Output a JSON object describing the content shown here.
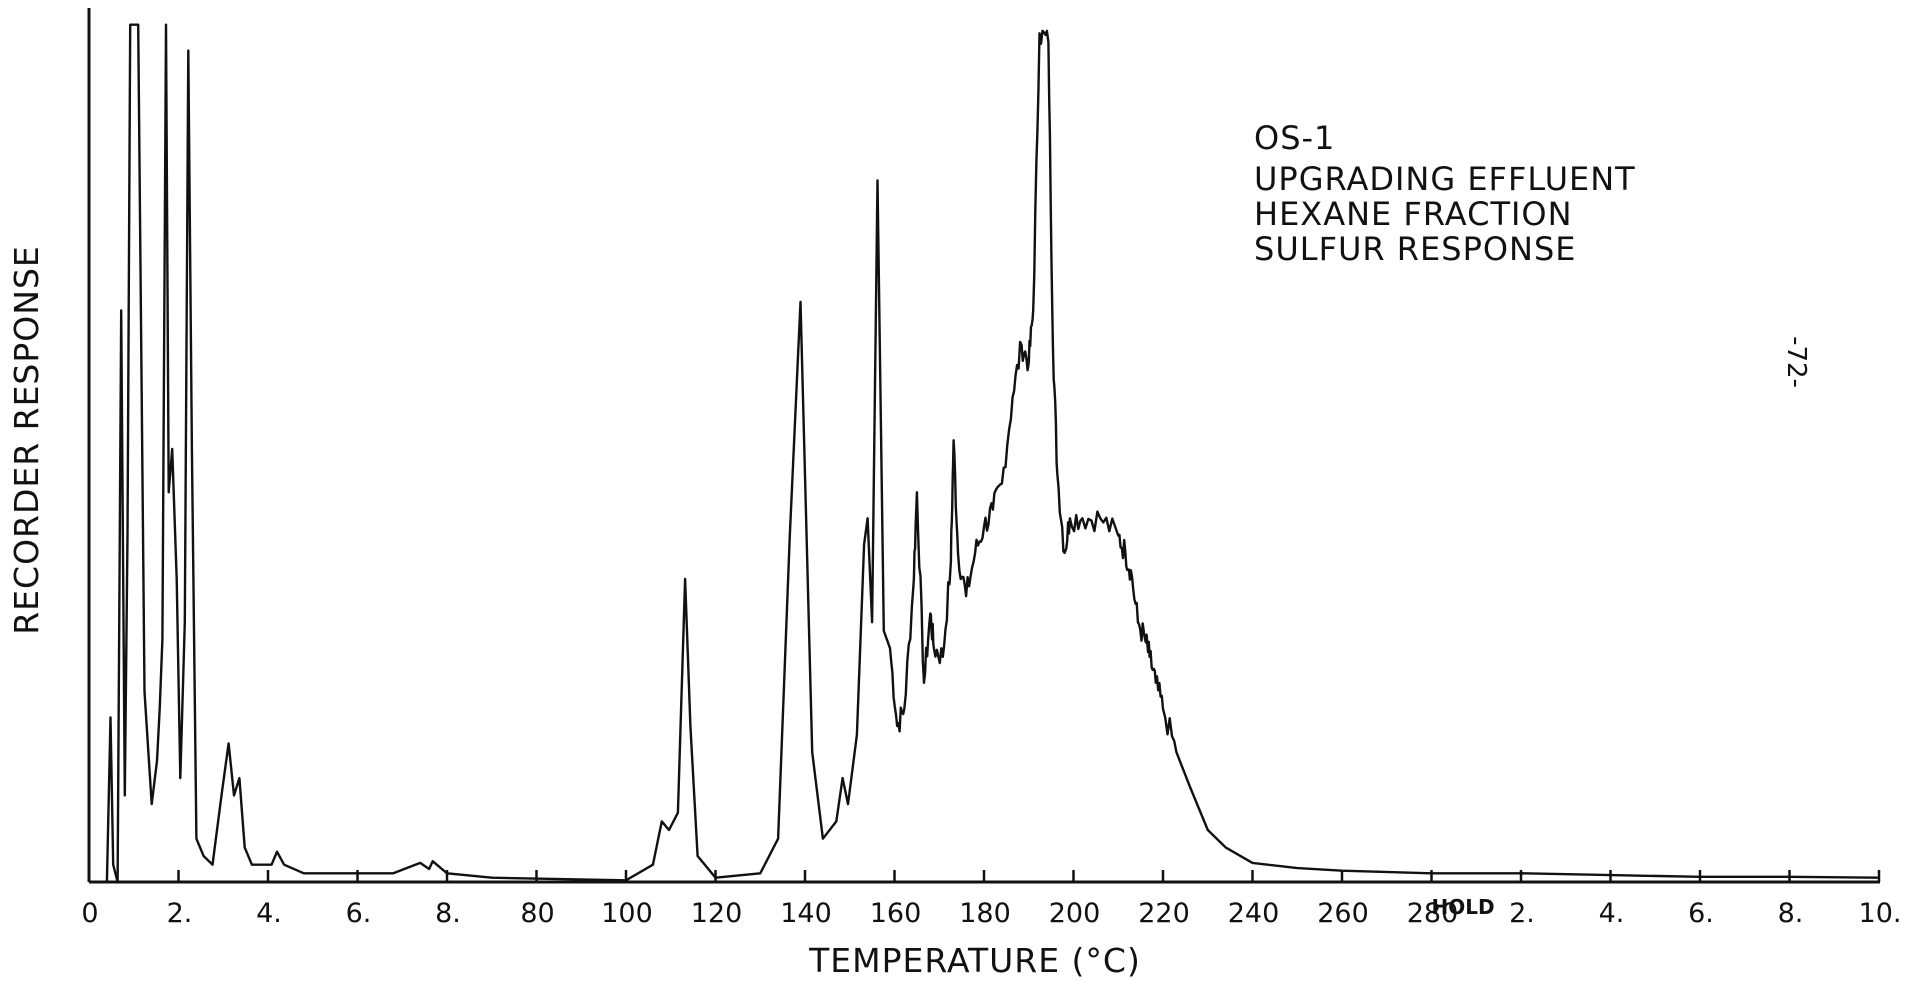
{
  "chart_data": {
    "type": "line",
    "title": "",
    "xlabel": "TEMPERATURE (°C)",
    "ylabel": "RECORDER RESPONSE",
    "x_tick_labels": [
      "0",
      "2.",
      "4.",
      "6.",
      "8.",
      "80",
      "100",
      "120",
      "140",
      "160",
      "180",
      "200",
      "220",
      "240",
      "260",
      "280",
      "2.",
      "4.",
      "6.",
      "8.",
      "10."
    ],
    "hold_label": "HOLD",
    "annotation_lines": [
      "OS-1",
      "UPGRADING EFFLUENT",
      "HEXANE FRACTION",
      "SULFUR RESPONSE"
    ],
    "page_number": "-72-",
    "grid": false,
    "legend": "none",
    "ylim": [
      0,
      1
    ],
    "x_units": "tick index (program: minutes isothermal, then temperature °C, then minutes hold)",
    "series": [
      {
        "values": [
          [
            0.0,
            0.0
          ],
          [
            0.2,
            0.0
          ],
          [
            0.24,
            0.19
          ],
          [
            0.27,
            0.02
          ],
          [
            0.32,
            0.0
          ],
          [
            0.36,
            0.66
          ],
          [
            0.4,
            0.1
          ],
          [
            0.43,
            0.4
          ],
          [
            0.46,
            0.99
          ],
          [
            0.55,
            0.99
          ],
          [
            0.62,
            0.22
          ],
          [
            0.7,
            0.09
          ],
          [
            0.76,
            0.14
          ],
          [
            0.79,
            0.2
          ],
          [
            0.82,
            0.28
          ],
          [
            0.86,
            0.99
          ],
          [
            0.89,
            0.45
          ],
          [
            0.93,
            0.5
          ],
          [
            0.98,
            0.35
          ],
          [
            1.02,
            0.12
          ],
          [
            1.07,
            0.3
          ],
          [
            1.11,
            0.96
          ],
          [
            1.15,
            0.5
          ],
          [
            1.2,
            0.05
          ],
          [
            1.28,
            0.03
          ],
          [
            1.38,
            0.02
          ],
          [
            1.48,
            0.1
          ],
          [
            1.56,
            0.16
          ],
          [
            1.62,
            0.1
          ],
          [
            1.68,
            0.12
          ],
          [
            1.74,
            0.04
          ],
          [
            1.82,
            0.02
          ],
          [
            2.04,
            0.02
          ],
          [
            2.1,
            0.035
          ],
          [
            2.18,
            0.02
          ],
          [
            2.4,
            0.01
          ],
          [
            2.78,
            0.01
          ],
          [
            2.9,
            0.01
          ],
          [
            3.4,
            0.01
          ],
          [
            3.7,
            0.022
          ],
          [
            3.8,
            0.015
          ],
          [
            3.84,
            0.024
          ],
          [
            4.0,
            0.01
          ],
          [
            4.5,
            0.005
          ],
          [
            6.0,
            0.002
          ],
          [
            6.3,
            0.02
          ],
          [
            6.4,
            0.07
          ],
          [
            6.48,
            0.06
          ],
          [
            6.58,
            0.08
          ],
          [
            6.66,
            0.35
          ],
          [
            6.72,
            0.18
          ],
          [
            6.8,
            0.03
          ],
          [
            7.0,
            0.005
          ],
          [
            7.5,
            0.01
          ],
          [
            7.7,
            0.05
          ],
          [
            7.83,
            0.4
          ],
          [
            7.95,
            0.67
          ],
          [
            8.08,
            0.15
          ],
          [
            8.2,
            0.05
          ],
          [
            8.35,
            0.07
          ],
          [
            8.42,
            0.12
          ],
          [
            8.48,
            0.09
          ],
          [
            8.58,
            0.17
          ],
          [
            8.66,
            0.39
          ],
          [
            8.7,
            0.42
          ],
          [
            8.75,
            0.3
          ],
          [
            8.81,
            0.81
          ],
          [
            8.88,
            0.29
          ],
          [
            8.95,
            0.27
          ],
          [
            9.03,
            0.18
          ],
          [
            9.11,
            0.2
          ],
          [
            9.21,
            0.34
          ],
          [
            9.25,
            0.45
          ],
          [
            9.33,
            0.23
          ],
          [
            9.4,
            0.31
          ],
          [
            9.44,
            0.27
          ],
          [
            9.54,
            0.26
          ],
          [
            9.63,
            0.37
          ],
          [
            9.66,
            0.51
          ],
          [
            9.71,
            0.38
          ],
          [
            9.8,
            0.33
          ],
          [
            9.9,
            0.38
          ],
          [
            10.0,
            0.41
          ],
          [
            10.1,
            0.43
          ],
          [
            10.2,
            0.46
          ],
          [
            10.32,
            0.56
          ],
          [
            10.42,
            0.62
          ],
          [
            10.5,
            0.6
          ],
          [
            10.55,
            0.66
          ],
          [
            10.62,
            0.98
          ],
          [
            10.72,
            0.97
          ],
          [
            10.77,
            0.62
          ],
          [
            10.82,
            0.47
          ],
          [
            10.9,
            0.38
          ],
          [
            10.96,
            0.42
          ],
          [
            11.1,
            0.42
          ],
          [
            11.3,
            0.42
          ],
          [
            11.5,
            0.4
          ],
          [
            11.58,
            0.38
          ],
          [
            11.64,
            0.36
          ],
          [
            11.72,
            0.3
          ],
          [
            11.8,
            0.28
          ],
          [
            11.85,
            0.26
          ],
          [
            11.92,
            0.23
          ],
          [
            12.0,
            0.2
          ],
          [
            12.15,
            0.15
          ],
          [
            12.3,
            0.11
          ],
          [
            12.5,
            0.06
          ],
          [
            12.7,
            0.04
          ],
          [
            13.0,
            0.022
          ],
          [
            13.5,
            0.016
          ],
          [
            14.0,
            0.013
          ],
          [
            15.0,
            0.01
          ],
          [
            16.0,
            0.01
          ],
          [
            17.0,
            0.008
          ],
          [
            18.0,
            0.006
          ],
          [
            19.0,
            0.006
          ],
          [
            20.0,
            0.005
          ]
        ]
      }
    ]
  }
}
